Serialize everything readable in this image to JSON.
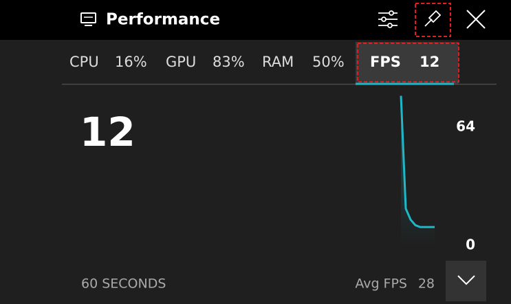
{
  "header": {
    "title": "Performance"
  },
  "tabs": [
    {
      "label": "CPU",
      "value": "16%"
    },
    {
      "label": "GPU",
      "value": "83%"
    },
    {
      "label": "RAM",
      "value": "50%"
    },
    {
      "label": "FPS",
      "value": "12"
    }
  ],
  "current_value": 12,
  "graph": {
    "ylim": [
      0,
      64
    ],
    "yticks": [
      64,
      0
    ],
    "values": [
      81,
      20,
      14,
      11,
      10,
      10,
      10,
      10
    ],
    "color": "#1fb8c8"
  },
  "footer": {
    "window": "60 SECONDS",
    "avg_label": "Avg FPS",
    "avg_value": 28
  }
}
